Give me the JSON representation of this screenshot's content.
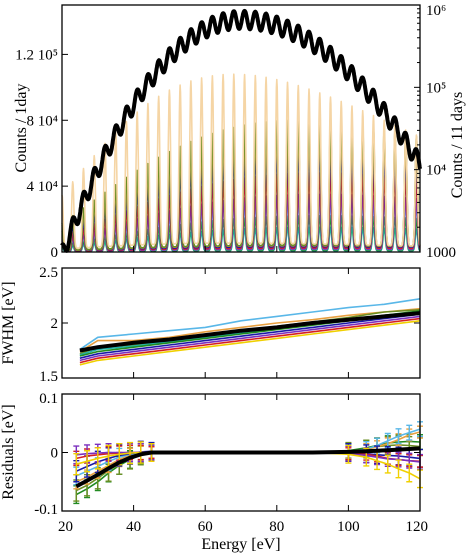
{
  "chart_data": [
    {
      "type": "line",
      "panel": "spectrum",
      "xlim": [
        20,
        120
      ],
      "ylim": [
        0,
        150000
      ],
      "ylabel": "Counts / 1day",
      "yticks": [
        {
          "value": 0,
          "label": "0"
        },
        {
          "value": 40000,
          "label": "4 10⁴"
        },
        {
          "value": 80000,
          "label": "8 10⁴"
        },
        {
          "value": 120000,
          "label": "1.2 10⁵"
        }
      ],
      "y2label": "Counts / 11 days",
      "y2scale": "log",
      "y2lim": [
        1000,
        1000000
      ],
      "y2ticks": [
        {
          "value": 1000,
          "label": "1000"
        },
        {
          "value": 10000,
          "label": "10⁴"
        },
        {
          "value": 100000,
          "label": "10⁵"
        },
        {
          "value": 1000000,
          "label": "10⁶"
        }
      ],
      "peak_spacing": 3.0,
      "series": [
        {
          "color": "#000000",
          "axis": "right",
          "peak_energy": 70,
          "envelope_peak": 850000,
          "envelope_at_20": 1200,
          "envelope_at_120": 15000
        },
        {
          "color": "#f5d5a5",
          "axis": "left",
          "peak_energy": 68,
          "peak_value": 108000
        },
        {
          "color": "#6b8e23",
          "axis": "left",
          "peak_energy": 86,
          "peak_value": 80000
        },
        {
          "color": "#e8a040",
          "axis": "left",
          "peak_energy": 86,
          "peak_value": 75000
        },
        {
          "color": "#1a1aa6",
          "axis": "left",
          "peak_energy": 90,
          "peak_value": 63000
        },
        {
          "color": "#d62020",
          "axis": "left",
          "peak_energy": 92,
          "peak_value": 48000
        },
        {
          "color": "#7b2fbe",
          "axis": "left",
          "peak_energy": 92,
          "peak_value": 35000
        },
        {
          "color": "#59b7e8",
          "axis": "left",
          "peak_energy": 92,
          "peak_value": 31000
        },
        {
          "color": "#228b22",
          "axis": "left",
          "peak_energy": 92,
          "peak_value": 22000
        },
        {
          "color": "#20b2aa",
          "axis": "left",
          "peak_energy": 92,
          "peak_value": 15000
        }
      ]
    },
    {
      "type": "line",
      "panel": "fwhm",
      "xlim": [
        20,
        120
      ],
      "ylim": [
        1.5,
        2.5
      ],
      "ylabel": "FWHM [eV]",
      "yticks": [
        {
          "value": 1.5,
          "label": "1.5"
        },
        {
          "value": 2,
          "label": "2"
        },
        {
          "value": 2.5,
          "label": "2.5"
        }
      ],
      "x": [
        25,
        30,
        40,
        50,
        60,
        70,
        80,
        90,
        100,
        110,
        120
      ],
      "series": [
        {
          "color": "#59b7e8",
          "values": [
            1.76,
            1.87,
            1.9,
            1.93,
            1.96,
            2.02,
            2.06,
            2.1,
            2.14,
            2.17,
            2.22
          ]
        },
        {
          "color": "#e8a040",
          "values": [
            1.74,
            1.84,
            1.84,
            1.87,
            1.92,
            1.96,
            2.0,
            2.03,
            2.07,
            2.1,
            2.13
          ]
        },
        {
          "color": "#6b8e23",
          "values": [
            1.72,
            1.78,
            1.8,
            1.84,
            1.88,
            1.93,
            1.97,
            2.01,
            2.05,
            2.1,
            2.12
          ]
        },
        {
          "color": "#20b2aa",
          "values": [
            1.71,
            1.76,
            1.79,
            1.83,
            1.87,
            1.91,
            1.95,
            1.99,
            2.03,
            2.07,
            2.1
          ]
        },
        {
          "color": "#228b22",
          "values": [
            1.7,
            1.74,
            1.78,
            1.82,
            1.86,
            1.9,
            1.94,
            1.98,
            2.02,
            2.07,
            2.11
          ]
        },
        {
          "color": "#1a1aa6",
          "values": [
            1.68,
            1.72,
            1.76,
            1.8,
            1.84,
            1.88,
            1.92,
            1.96,
            2.0,
            2.04,
            2.08
          ]
        },
        {
          "color": "#7b2fbe",
          "values": [
            1.66,
            1.7,
            1.74,
            1.78,
            1.82,
            1.86,
            1.9,
            1.94,
            1.98,
            2.02,
            2.06
          ]
        },
        {
          "color": "#d62020",
          "values": [
            1.64,
            1.68,
            1.72,
            1.76,
            1.8,
            1.84,
            1.88,
            1.92,
            1.96,
            2.0,
            2.04
          ]
        },
        {
          "color": "#f0d000",
          "values": [
            1.62,
            1.66,
            1.7,
            1.74,
            1.78,
            1.82,
            1.86,
            1.9,
            1.94,
            1.98,
            2.02
          ]
        },
        {
          "color": "#000000",
          "values": [
            1.75,
            1.78,
            1.82,
            1.85,
            1.89,
            1.93,
            1.96,
            2.0,
            2.03,
            2.06,
            2.09
          ]
        }
      ]
    },
    {
      "type": "line",
      "panel": "residuals",
      "xlim": [
        20,
        120
      ],
      "ylim": [
        -0.1,
        0.1
      ],
      "xlabel": "Energy [eV]",
      "ylabel": "Residuals [eV]",
      "xticks": [
        {
          "value": 20,
          "label": "20"
        },
        {
          "value": 40,
          "label": "40"
        },
        {
          "value": 60,
          "label": "60"
        },
        {
          "value": 80,
          "label": "80"
        },
        {
          "value": 100,
          "label": "100"
        },
        {
          "value": 120,
          "label": "120"
        }
      ],
      "yticks": [
        {
          "value": -0.1,
          "label": "-0.1"
        },
        {
          "value": 0,
          "label": "0"
        },
        {
          "value": 0.1,
          "label": "0.1"
        }
      ],
      "x": [
        24,
        27,
        30,
        33,
        36,
        39,
        42,
        45,
        50,
        60,
        70,
        80,
        90,
        100,
        105,
        108,
        111,
        114,
        117,
        120
      ],
      "series": [
        {
          "color": "#000000",
          "values": [
            -0.058,
            -0.048,
            -0.038,
            -0.027,
            -0.017,
            -0.009,
            -0.003,
            0.0,
            0.0,
            0.0,
            0.0,
            0.0,
            0.0,
            0.001,
            0.002,
            0.003,
            0.004,
            0.005,
            0.006,
            0.007
          ]
        },
        {
          "color": "#228b22",
          "values": [
            -0.072,
            -0.062,
            -0.05,
            -0.035,
            -0.022,
            -0.012,
            -0.004,
            0.0,
            0.0,
            0.0,
            0.001,
            0.0,
            0.0,
            0.003,
            0.008,
            0.012,
            0.016,
            0.018,
            0.019,
            0.018
          ]
        },
        {
          "color": "#6b8e23",
          "values": [
            -0.065,
            -0.056,
            -0.044,
            -0.031,
            -0.019,
            -0.01,
            -0.003,
            0.0,
            0.0,
            0.0,
            0.0,
            0.0,
            0.0,
            0.002,
            0.006,
            0.01,
            0.012,
            0.013,
            0.012,
            0.01
          ]
        },
        {
          "color": "#e8a040",
          "values": [
            -0.05,
            -0.042,
            -0.032,
            -0.022,
            -0.012,
            -0.005,
            -0.001,
            0.0,
            0.0,
            0.0,
            0.0,
            0.0,
            0.0,
            0.0,
            0.005,
            0.01,
            0.015,
            0.022,
            0.03,
            0.035
          ]
        },
        {
          "color": "#59b7e8",
          "values": [
            -0.04,
            -0.032,
            -0.024,
            -0.015,
            -0.008,
            -0.003,
            0.0,
            0.0,
            0.0,
            0.0,
            0.0,
            0.0,
            0.0,
            0.001,
            0.006,
            0.012,
            0.02,
            0.028,
            0.034,
            0.04
          ]
        },
        {
          "color": "#1a1aa6",
          "values": [
            -0.032,
            -0.024,
            -0.016,
            -0.01,
            -0.005,
            -0.002,
            0.001,
            0.002,
            0.001,
            0.0,
            0.0,
            0.0,
            0.0,
            0.0,
            -0.002,
            -0.004,
            -0.005,
            -0.006,
            -0.008,
            -0.01
          ]
        },
        {
          "color": "#d62020",
          "values": [
            -0.01,
            -0.006,
            -0.004,
            -0.002,
            -0.001,
            0.0,
            0.0,
            0.0,
            0.0,
            0.0,
            0.0,
            0.0,
            0.0,
            -0.002,
            -0.003,
            -0.006,
            -0.01,
            -0.012,
            -0.014,
            -0.015
          ]
        },
        {
          "color": "#7b2fbe",
          "values": [
            -0.004,
            -0.002,
            -0.001,
            0.0,
            0.0,
            0.0,
            0.0,
            0.0,
            0.0,
            0.0,
            0.0,
            0.0,
            0.0,
            -0.002,
            -0.005,
            -0.008,
            -0.011,
            -0.012,
            -0.014,
            -0.016
          ]
        },
        {
          "color": "#f0d000",
          "values": [
            -0.02,
            -0.015,
            -0.01,
            -0.006,
            -0.003,
            -0.001,
            0.0,
            0.0,
            0.0,
            0.0,
            0.0,
            0.0,
            0.0,
            -0.003,
            -0.008,
            -0.014,
            -0.02,
            -0.028,
            -0.035,
            -0.045
          ]
        }
      ]
    }
  ]
}
